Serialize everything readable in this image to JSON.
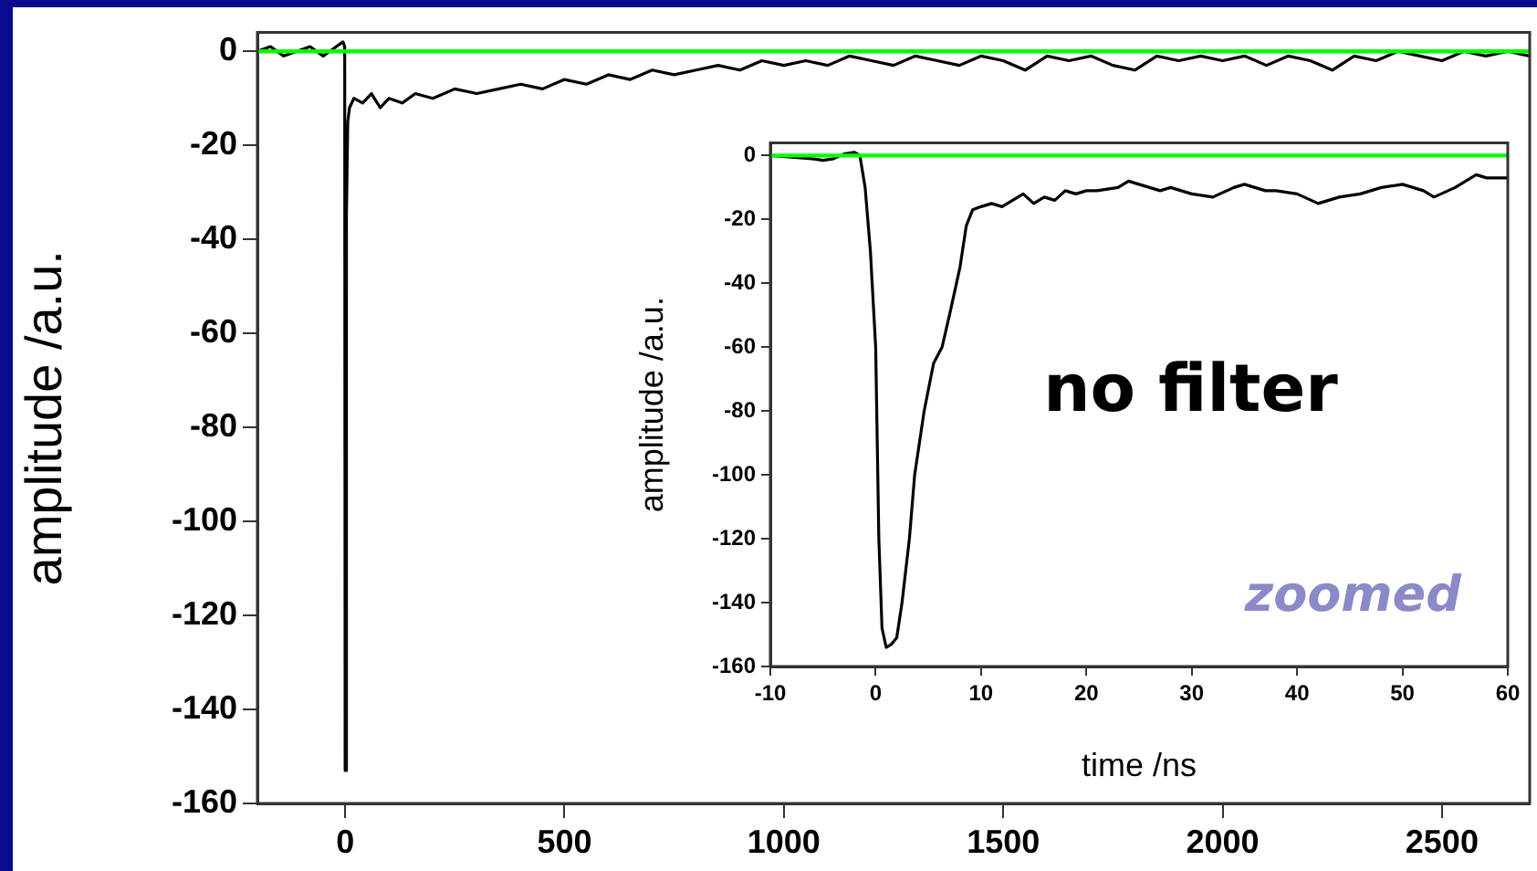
{
  "chart_data": [
    {
      "type": "line",
      "ylabel": "amplitude /a.u.",
      "color": "#000000",
      "marker": "none",
      "line_style": "solid",
      "grid": false,
      "legend": false,
      "xlim": [
        -200,
        2700
      ],
      "xticks": [
        0,
        500,
        1000,
        1500,
        2000,
        2500
      ],
      "ylim": [
        -160,
        4
      ],
      "yticks": [
        -160,
        -140,
        -120,
        -100,
        -80,
        -60,
        -40,
        -20,
        0
      ],
      "ref_lines": [
        {
          "axis": "y",
          "value": 0,
          "color": "#00ff00"
        }
      ],
      "x": [
        -200,
        -170,
        -140,
        -110,
        -80,
        -50,
        -20,
        -5,
        -1,
        0,
        3,
        6,
        10,
        20,
        40,
        60,
        80,
        100,
        130,
        160,
        200,
        250,
        300,
        350,
        400,
        450,
        500,
        550,
        600,
        650,
        700,
        750,
        800,
        850,
        900,
        950,
        1000,
        1050,
        1100,
        1150,
        1200,
        1250,
        1300,
        1350,
        1400,
        1450,
        1500,
        1550,
        1600,
        1650,
        1700,
        1750,
        1800,
        1850,
        1900,
        1950,
        2000,
        2050,
        2100,
        2150,
        2200,
        2250,
        2300,
        2350,
        2400,
        2450,
        2500,
        2550,
        2600,
        2650,
        2700
      ],
      "values": [
        0,
        1,
        -1,
        0,
        1,
        -1,
        1,
        2,
        1,
        -153,
        -35,
        -15,
        -12,
        -10,
        -11,
        -9,
        -12,
        -10,
        -11,
        -9,
        -10,
        -8,
        -9,
        -8,
        -7,
        -8,
        -6,
        -7,
        -5,
        -6,
        -4,
        -5,
        -4,
        -3,
        -4,
        -2,
        -3,
        -2,
        -3,
        -1,
        -2,
        -3,
        -1,
        -2,
        -3,
        -1,
        -2,
        -4,
        -1,
        -2,
        -1,
        -3,
        -4,
        -1,
        -2,
        -1,
        -2,
        -1,
        -3,
        -1,
        -2,
        -4,
        -1,
        -2,
        0,
        -1,
        -2,
        0,
        -1,
        0,
        -1
      ]
    },
    {
      "type": "line",
      "xlabel": "time /ns",
      "ylabel": "amplitude /a.u.",
      "color": "#000000",
      "marker": "none",
      "line_style": "solid",
      "grid": false,
      "legend": false,
      "xlim": [
        -10,
        60
      ],
      "xticks": [
        -10,
        0,
        10,
        20,
        30,
        40,
        50,
        60
      ],
      "ylim": [
        -160,
        4
      ],
      "yticks": [
        -160,
        -140,
        -120,
        -100,
        -80,
        -60,
        -40,
        -20,
        0
      ],
      "ref_lines": [
        {
          "axis": "y",
          "value": 0,
          "color": "#00ff00"
        }
      ],
      "annotations": [
        "no filter",
        "zoomed"
      ],
      "x": [
        -10,
        -8,
        -6,
        -5,
        -4,
        -3,
        -2,
        -1.5,
        -1,
        -0.5,
        0,
        0.3,
        0.6,
        1,
        1.5,
        2,
        2.5,
        3.2,
        3.7,
        4.6,
        5.5,
        6.3,
        7,
        8,
        8.6,
        9.2,
        10,
        11,
        12,
        13,
        14,
        15,
        16,
        17,
        18,
        19,
        20,
        21,
        23,
        24,
        25,
        27,
        28,
        30,
        32,
        34,
        35,
        37,
        38,
        40,
        42,
        44,
        46,
        48,
        50,
        52,
        53,
        55,
        57,
        58,
        60
      ],
      "values": [
        0,
        -0.5,
        -1,
        -1.5,
        -1,
        0.5,
        1,
        0,
        -10,
        -30,
        -60,
        -120,
        -148,
        -154,
        -153,
        -151,
        -140,
        -120,
        -100,
        -80,
        -65,
        -60,
        -50,
        -35,
        -22,
        -17,
        -16,
        -15,
        -16,
        -14,
        -12,
        -15,
        -13,
        -14,
        -11,
        -12,
        -11,
        -11,
        -10,
        -8,
        -9,
        -11,
        -10,
        -12,
        -13,
        -10,
        -9,
        -11,
        -11,
        -12,
        -15,
        -13,
        -12,
        -10,
        -9,
        -11,
        -13,
        -10,
        -6,
        -7,
        -7
      ]
    }
  ]
}
